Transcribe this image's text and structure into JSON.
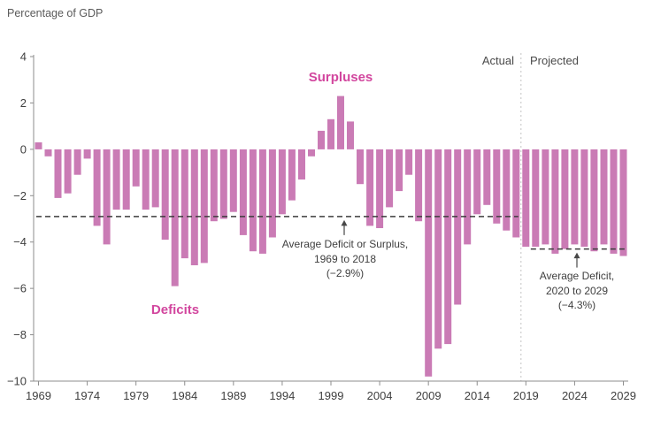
{
  "labels": {
    "surpluses": "Surpluses",
    "deficits": "Deficits",
    "actual": "Actual",
    "projected": "Projected"
  },
  "annotations": {
    "avg_historical": {
      "lines": [
        "Average Deficit or Surplus,",
        "1969 to 2018",
        "(−2.9%)"
      ],
      "value": -2.9,
      "span": [
        1969,
        2018
      ]
    },
    "avg_projected": {
      "lines": [
        "Average Deficit,",
        "2020 to 2029",
        "(−4.3%)"
      ],
      "value": -4.3,
      "span": [
        2020,
        2029
      ]
    }
  },
  "chart_data": {
    "type": "bar",
    "title": "",
    "ylabel": "Percentage of GDP",
    "xlabel": "",
    "ylim": [
      -10,
      4
    ],
    "y_ticks": [
      4,
      2,
      0,
      -2,
      -4,
      -6,
      -8,
      -10
    ],
    "x_ticks": [
      1969,
      1974,
      1979,
      1984,
      1989,
      1994,
      1999,
      2004,
      2009,
      2014,
      2019,
      2024,
      2029
    ],
    "grid": false,
    "legend": "none",
    "bar_color": "#ca7bb5",
    "divider_year": 2019,
    "years": [
      1969,
      1970,
      1971,
      1972,
      1973,
      1974,
      1975,
      1976,
      1977,
      1978,
      1979,
      1980,
      1981,
      1982,
      1983,
      1984,
      1985,
      1986,
      1987,
      1988,
      1989,
      1990,
      1991,
      1992,
      1993,
      1994,
      1995,
      1996,
      1997,
      1998,
      1999,
      2000,
      2001,
      2002,
      2003,
      2004,
      2005,
      2006,
      2007,
      2008,
      2009,
      2010,
      2011,
      2012,
      2013,
      2014,
      2015,
      2016,
      2017,
      2018,
      2019,
      2020,
      2021,
      2022,
      2023,
      2024,
      2025,
      2026,
      2027,
      2028,
      2029
    ],
    "values": [
      0.3,
      -0.3,
      -2.1,
      -1.9,
      -1.1,
      -0.4,
      -3.3,
      -4.1,
      -2.6,
      -2.6,
      -1.6,
      -2.6,
      -2.5,
      -3.9,
      -5.9,
      -4.7,
      -5.0,
      -4.9,
      -3.1,
      -3.0,
      -2.7,
      -3.7,
      -4.4,
      -4.5,
      -3.8,
      -2.8,
      -2.2,
      -1.3,
      -0.3,
      0.8,
      1.3,
      2.3,
      1.2,
      -1.5,
      -3.3,
      -3.4,
      -2.5,
      -1.8,
      -1.1,
      -3.1,
      -9.8,
      -8.6,
      -8.4,
      -6.7,
      -4.1,
      -2.8,
      -2.4,
      -3.2,
      -3.5,
      -3.8,
      -4.2,
      -4.2,
      -4.1,
      -4.5,
      -4.3,
      -4.1,
      -4.2,
      -4.4,
      -4.1,
      -4.5,
      -4.6
    ]
  }
}
